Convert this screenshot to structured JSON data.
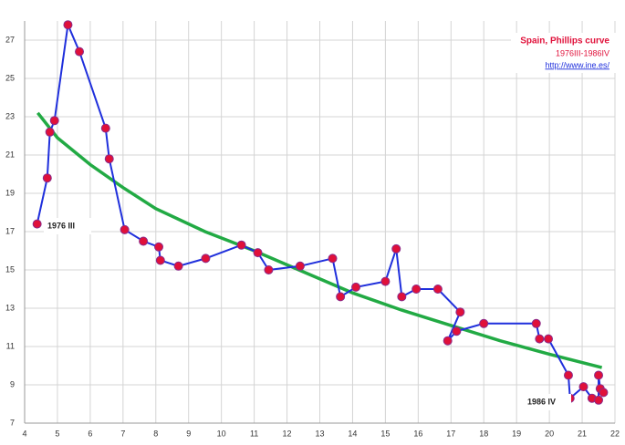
{
  "chart_data": {
    "type": "line",
    "title": "Spain, Phillips curve",
    "subtitle": "1976III-1986IV",
    "source": "http://www.ine.es/",
    "annotations": [
      "1976 III",
      "1986 IV"
    ],
    "xlim": [
      4,
      22
    ],
    "xticks": [
      4,
      5,
      6,
      7,
      8,
      9,
      10,
      11,
      12,
      13,
      14,
      15,
      16,
      17,
      18,
      19,
      20,
      21,
      22
    ],
    "ylim": [
      7,
      28
    ],
    "yticks": [
      7,
      9,
      11,
      13,
      15,
      17,
      19,
      21,
      23,
      25,
      27
    ],
    "grid": true,
    "series": [
      {
        "color": "#1f2fdc",
        "marker_color": "#e0103a",
        "x": [
          4.38,
          4.69,
          4.77,
          4.91,
          5.32,
          5.67,
          6.47,
          6.58,
          7.05,
          7.62,
          8.09,
          8.14,
          8.69,
          9.52,
          10.61,
          11.11,
          11.44,
          12.4,
          13.39,
          13.63,
          14.1,
          15.0,
          15.33,
          15.5,
          15.94,
          16.6,
          17.28,
          16.9,
          17.17,
          18.0,
          19.6,
          19.7,
          19.97,
          20.58,
          20.63,
          21.04,
          21.3,
          21.5,
          21.5,
          21.55,
          21.65
        ],
        "values": [
          17.4,
          19.8,
          22.2,
          22.8,
          27.8,
          26.4,
          22.4,
          20.8,
          17.1,
          16.5,
          16.2,
          15.5,
          15.2,
          15.6,
          16.3,
          15.9,
          15.0,
          15.2,
          15.6,
          13.6,
          14.1,
          14.4,
          16.1,
          13.6,
          14.0,
          14.0,
          12.8,
          11.3,
          11.8,
          12.2,
          12.2,
          11.4,
          11.4,
          9.5,
          8.3,
          8.9,
          8.3,
          8.2,
          9.5,
          8.8,
          8.6
        ]
      },
      {
        "color": "#22aa44",
        "x": [
          4.4,
          5,
          6,
          7,
          8,
          9.5,
          11,
          12.5,
          14,
          15.5,
          17,
          18.5,
          20,
          21.6
        ],
        "values": [
          23.2,
          21.9,
          20.5,
          19.3,
          18.2,
          17.0,
          16.0,
          14.9,
          13.8,
          12.9,
          12.1,
          11.3,
          10.6,
          9.9
        ]
      }
    ]
  }
}
